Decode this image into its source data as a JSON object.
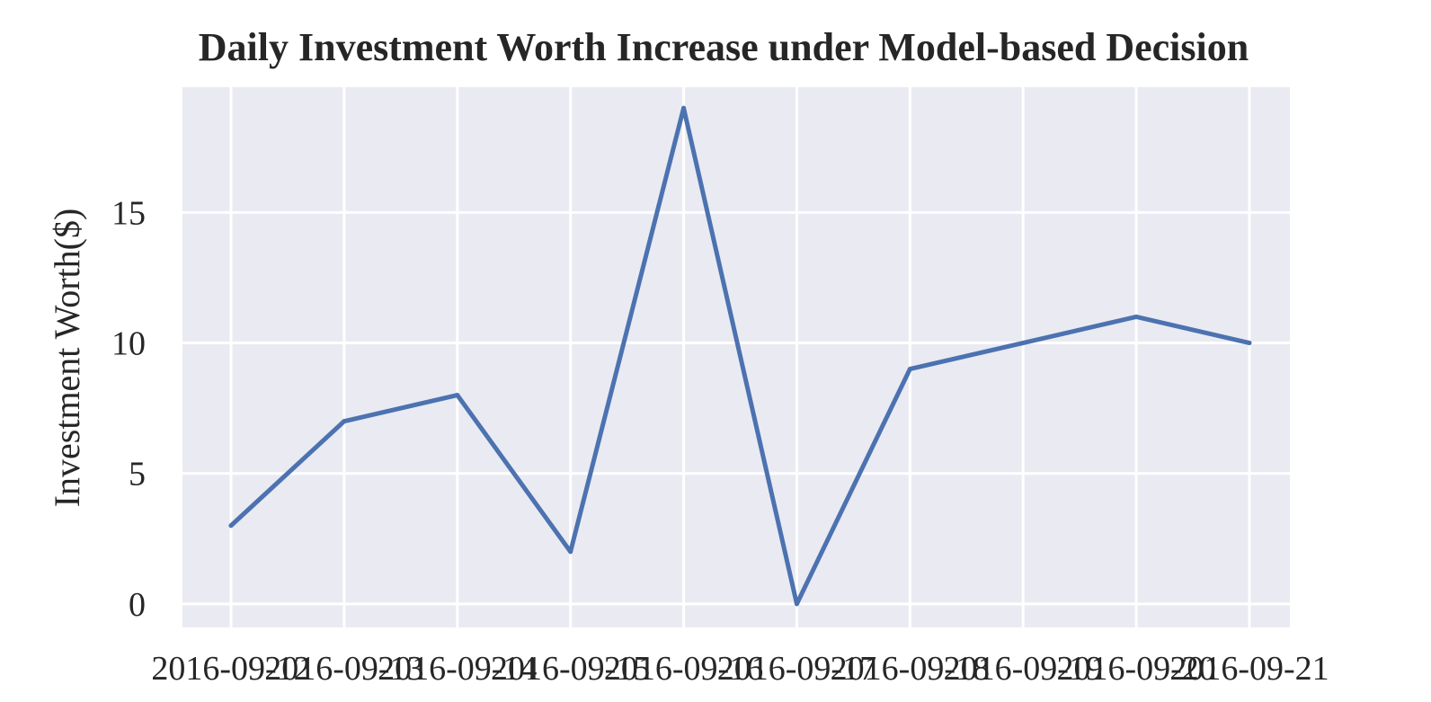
{
  "chart_data": {
    "type": "line",
    "title": "Daily Investment Worth Increase under Model-based Decision",
    "xlabel": "",
    "ylabel": "Investment Worth($)",
    "x": [
      "2016-09-12",
      "2016-09-13",
      "2016-09-14",
      "2016-09-15",
      "2016-09-16",
      "2016-09-17",
      "2016-09-18",
      "2016-09-19",
      "2016-09-20",
      "2016-09-21"
    ],
    "series": [
      {
        "values": [
          3,
          7,
          8,
          2,
          19,
          0,
          9,
          10,
          11,
          10
        ]
      }
    ],
    "yticks": [
      0,
      5,
      10,
      15
    ],
    "ylim": [
      -0.9,
      19.8
    ],
    "grid": true,
    "colors": {
      "line": "#4c72b0",
      "plot_bg": "#eaeaf2",
      "grid": "#ffffff",
      "text": "#262626"
    }
  }
}
